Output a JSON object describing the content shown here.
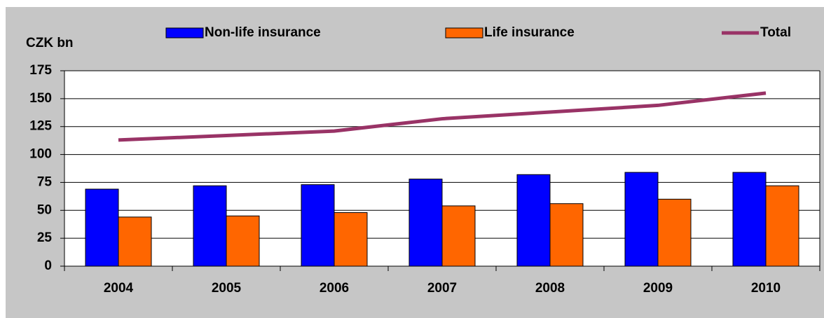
{
  "chart_data": {
    "type": "bar",
    "y_label": "CZK bn",
    "categories": [
      "2004",
      "2005",
      "2006",
      "2007",
      "2008",
      "2009",
      "2010"
    ],
    "series": [
      {
        "name": "Non-life insurance",
        "color": "#0000ff",
        "values": [
          69,
          72,
          73,
          78,
          82,
          84,
          84
        ]
      },
      {
        "name": "Life insurance",
        "color": "#ff6600",
        "values": [
          44,
          45,
          48,
          54,
          56,
          60,
          72
        ]
      },
      {
        "name": "Total",
        "color": "#993366",
        "type": "line",
        "values": [
          113,
          117,
          121,
          132,
          138,
          144,
          155
        ]
      }
    ],
    "ylim": [
      0,
      175
    ],
    "yticks": [
      0,
      25,
      50,
      75,
      100,
      125,
      150,
      175
    ],
    "grid": true,
    "legend": "top"
  }
}
